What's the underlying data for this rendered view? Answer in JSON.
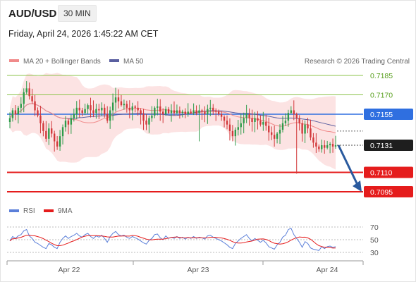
{
  "header": {
    "symbol": "AUD/USD",
    "timeframe": "30 MIN",
    "datetime": "Friday, April 24, 2026 1:45:22 AM CET"
  },
  "legend": {
    "ma20": "MA 20 + Bollinger Bands",
    "ma50": "MA 50",
    "credit": "Research © 2026 Trading Central"
  },
  "rsi_legend": {
    "rsi": "RSI",
    "ma9": "9MA"
  },
  "colors": {
    "up": "#2e9b4a",
    "down": "#d2383a",
    "ma20": "#f08a8a",
    "band": "#fcdede",
    "ma50": "#5a5fa0",
    "resistance": "#8bc34a",
    "pivot": "#2f6fe0",
    "support": "#e51c1c",
    "arrow": "#2a5a9e",
    "rsi": "#5b7fd9",
    "rsi_ma": "#e51c1c"
  },
  "chart_data": {
    "type": "candlestick",
    "price_levels": [
      {
        "value": 0.7185,
        "label": "0.7185",
        "kind": "resistance"
      },
      {
        "value": 0.717,
        "label": "0.7170",
        "kind": "resistance"
      },
      {
        "value": 0.7155,
        "label": "0.7155",
        "kind": "pivot"
      },
      {
        "value": 0.7131,
        "label": "0.7131",
        "kind": "last"
      },
      {
        "value": 0.711,
        "label": "0.7110",
        "kind": "support"
      },
      {
        "value": 0.7095,
        "label": "0.7095",
        "kind": "support"
      }
    ],
    "x_labels": [
      "Apr 22",
      "Apr 23",
      "Apr 24"
    ],
    "rsi_levels": [
      {
        "value": 70,
        "label": "70"
      },
      {
        "value": 50,
        "label": "50"
      },
      {
        "value": 30,
        "label": "30"
      }
    ],
    "arrow": {
      "from": 0.7131,
      "to": 0.7095,
      "direction": "down"
    },
    "candles_close": [
      0.7152,
      0.7158,
      0.7155,
      0.716,
      0.7163,
      0.7172,
      0.7175,
      0.7169,
      0.7165,
      0.7158,
      0.7154,
      0.7148,
      0.7142,
      0.7136,
      0.7144,
      0.714,
      0.7134,
      0.713,
      0.7138,
      0.7145,
      0.715,
      0.7147,
      0.7152,
      0.7155,
      0.716,
      0.7158,
      0.7156,
      0.7159,
      0.7162,
      0.7158,
      0.7156,
      0.7159,
      0.7158,
      0.716,
      0.7155,
      0.715,
      0.7158,
      0.7164,
      0.7168,
      0.7165,
      0.7162,
      0.7163,
      0.716,
      0.7158,
      0.7161,
      0.716,
      0.7158,
      0.7155,
      0.715,
      0.7147,
      0.7152,
      0.7154,
      0.716,
      0.7161,
      0.7157,
      0.7155,
      0.7159,
      0.7156,
      0.7158,
      0.7156,
      0.7158,
      0.7156,
      0.7157,
      0.7155,
      0.7157,
      0.7156,
      0.7158,
      0.7156,
      0.7158,
      0.7157,
      0.7155,
      0.7159,
      0.716,
      0.7158,
      0.7157,
      0.7155,
      0.7153,
      0.715,
      0.7147,
      0.7142,
      0.7138,
      0.7143,
      0.7145,
      0.7148,
      0.7152,
      0.7155,
      0.7152,
      0.7149,
      0.7152,
      0.715,
      0.7147,
      0.7149,
      0.7146,
      0.7141,
      0.7139,
      0.7136,
      0.714,
      0.7143,
      0.7148,
      0.715,
      0.7156,
      0.7158,
      0.7155,
      0.7152,
      0.7148,
      0.714,
      0.7147,
      0.7144,
      0.7137,
      0.7133,
      0.713,
      0.7128,
      0.7131,
      0.7129,
      0.7131,
      0.7132,
      0.713,
      0.7131
    ],
    "rsi": [
      48,
      55,
      52,
      56,
      58,
      64,
      66,
      56,
      52,
      46,
      44,
      41,
      38,
      36,
      44,
      42,
      38,
      36,
      46,
      52,
      56,
      52,
      55,
      57,
      60,
      56,
      54,
      58,
      60,
      55,
      52,
      56,
      54,
      57,
      52,
      46,
      55,
      60,
      63,
      58,
      56,
      57,
      54,
      52,
      55,
      53,
      51,
      48,
      45,
      43,
      49,
      52,
      58,
      59,
      53,
      50,
      56,
      52,
      54,
      52,
      55,
      52,
      54,
      51,
      54,
      52,
      55,
      52,
      54,
      53,
      51,
      56,
      57,
      54,
      52,
      50,
      48,
      45,
      42,
      38,
      36,
      44,
      48,
      52,
      55,
      58,
      52,
      48,
      52,
      49,
      46,
      49,
      45,
      39,
      37,
      35,
      42,
      46,
      54,
      57,
      66,
      68,
      58,
      52,
      46,
      38,
      47,
      44,
      37,
      35,
      34,
      33,
      39,
      36,
      39,
      40,
      38,
      39
    ]
  }
}
